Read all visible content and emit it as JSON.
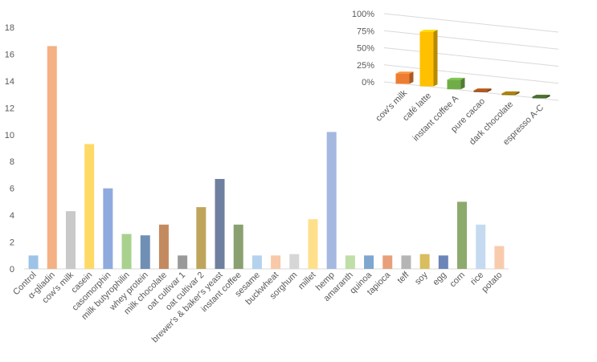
{
  "chart_data": [
    {
      "type": "bar",
      "ylim": [
        0,
        18
      ],
      "yticks": [
        0,
        2,
        4,
        6,
        8,
        10,
        12,
        14,
        16,
        18
      ],
      "grid": false,
      "legend": "none",
      "categories": [
        "Control",
        "α-gliadin",
        "cow's milk",
        "casein",
        "casomorphin",
        "milk butyrophilin",
        "whey protein",
        "milk chocolate",
        "oat cultivar 1",
        "oat cultivar 2",
        "brewer's & baker's yeast",
        "instant coffee",
        "sesame",
        "buckwheat",
        "sorghum",
        "millet",
        "hemp",
        "amaranth",
        "quinoa",
        "tapioca",
        "teff",
        "soy",
        "egg",
        "corn",
        "rice",
        "potato"
      ],
      "values": [
        1.0,
        16.6,
        4.3,
        9.3,
        6.0,
        2.6,
        2.5,
        3.3,
        1.0,
        4.6,
        6.7,
        3.3,
        1.0,
        1.0,
        1.1,
        3.7,
        10.2,
        1.0,
        1.0,
        1.0,
        1.0,
        1.1,
        1.0,
        5.0,
        3.3,
        1.7
      ],
      "colors": [
        "#9dc3e6",
        "#f4b183",
        "#c9c9c9",
        "#ffd966",
        "#8faadc",
        "#a9d18e",
        "#6f8fb5",
        "#c48a5f",
        "#9a9a9a",
        "#bfa55a",
        "#6f7f9f",
        "#8ba070",
        "#b4d2ee",
        "#f8c8a8",
        "#d6d6d6",
        "#ffe08a",
        "#a4b8e0",
        "#c0dea8",
        "#7ea6cf",
        "#e8a07a",
        "#b5b5b5",
        "#d9bd5e",
        "#6c85b8",
        "#8caa6c",
        "#c5daf1",
        "#f9cbad"
      ]
    },
    {
      "type": "bar",
      "ylim": [
        0,
        100
      ],
      "yticks": [
        "0%",
        "25%",
        "50%",
        "75%",
        "100%"
      ],
      "grid": true,
      "legend": "none",
      "categories": [
        "cow's milk",
        "café latte",
        "instant coffee A",
        "pure cacao",
        "dark chocolate",
        "espresso A-C"
      ],
      "values": [
        15,
        80,
        14,
        1,
        1,
        1
      ],
      "colors": [
        "#ed7d31",
        "#ffc000",
        "#70ad47",
        "#9e480e",
        "#997300",
        "#43682b"
      ]
    }
  ]
}
